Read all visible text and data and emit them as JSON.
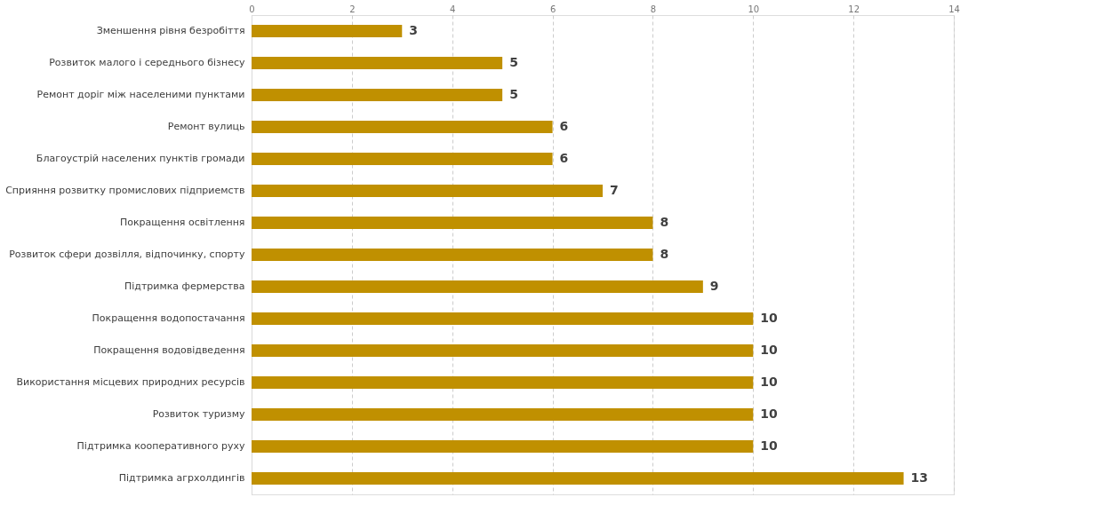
{
  "chart_data": {
    "type": "bar",
    "orientation": "horizontal",
    "categories": [
      "Зменшення рівня безробіття",
      "Розвиток малого і середнього бізнесу",
      "Ремонт доріг між населеними пунктами",
      "Ремонт вулиць",
      "Благоустрій населених пунктів громади",
      "Сприяння розвитку промислових підприемств",
      "Покращення освітлення",
      "Розвиток сфери дозвілля, відпочинку, спорту",
      "Підтримка фермерства",
      "Покращення водопостачання",
      "Покращення водовідведення",
      "Використання місцевих природних ресурсів",
      "Розвиток туризму",
      "Підтримка кооперативного руху",
      "Підтримка агрхолдингів"
    ],
    "values": [
      3,
      5,
      5,
      6,
      6,
      7,
      8,
      8,
      9,
      10,
      10,
      10,
      10,
      10,
      13
    ],
    "color": "#c09000",
    "xlim": [
      0,
      14
    ],
    "xticks": [
      0,
      2,
      4,
      6,
      8,
      10,
      12,
      14
    ],
    "grid": "x",
    "data_labels": true
  }
}
